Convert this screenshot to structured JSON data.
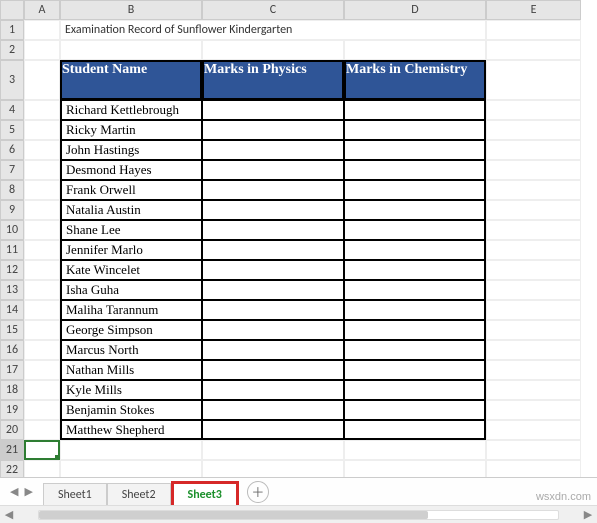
{
  "columns": [
    "A",
    "B",
    "C",
    "D",
    "E"
  ],
  "rowNumbers": [
    1,
    2,
    3,
    4,
    5,
    6,
    7,
    8,
    9,
    10,
    11,
    12,
    13,
    14,
    15,
    16,
    17,
    18,
    19,
    20,
    21,
    22
  ],
  "selectedRow": 21,
  "title": "Examination Record of Sunflower Kindergarten",
  "table": {
    "headers": [
      "Student Name",
      "Marks in Physics",
      "Marks in Chemistry"
    ],
    "header_bg": "#2f5597",
    "header_fg": "#ffffff",
    "rows": [
      {
        "name": "Richard Kettlebrough",
        "phys": "",
        "chem": ""
      },
      {
        "name": "Ricky Martin",
        "phys": "",
        "chem": ""
      },
      {
        "name": "John Hastings",
        "phys": "",
        "chem": ""
      },
      {
        "name": "Desmond Hayes",
        "phys": "",
        "chem": ""
      },
      {
        "name": "Frank Orwell",
        "phys": "",
        "chem": ""
      },
      {
        "name": "Natalia Austin",
        "phys": "",
        "chem": ""
      },
      {
        "name": "Shane Lee",
        "phys": "",
        "chem": ""
      },
      {
        "name": "Jennifer Marlo",
        "phys": "",
        "chem": ""
      },
      {
        "name": "Kate Wincelet",
        "phys": "",
        "chem": ""
      },
      {
        "name": "Isha Guha",
        "phys": "",
        "chem": ""
      },
      {
        "name": "Maliha Tarannum",
        "phys": "",
        "chem": ""
      },
      {
        "name": "George Simpson",
        "phys": "",
        "chem": ""
      },
      {
        "name": "Marcus North",
        "phys": "",
        "chem": ""
      },
      {
        "name": "Nathan Mills",
        "phys": "",
        "chem": ""
      },
      {
        "name": "Kyle Mills",
        "phys": "",
        "chem": ""
      },
      {
        "name": "Benjamin Stokes",
        "phys": "",
        "chem": ""
      },
      {
        "name": "Matthew Shepherd",
        "phys": "",
        "chem": ""
      }
    ]
  },
  "sheets": {
    "tabs": [
      "Sheet1",
      "Sheet2",
      "Sheet3"
    ],
    "active": 2
  },
  "watermark": "wsxdn.com"
}
